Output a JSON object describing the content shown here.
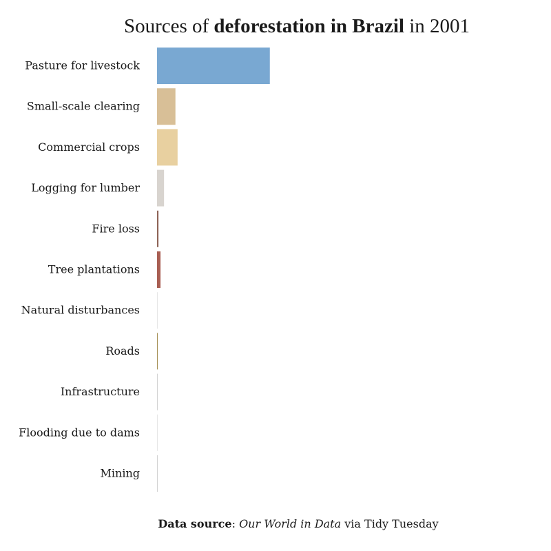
{
  "title": {
    "prefix": "Sources of ",
    "bold": "deforestation in Brazil",
    "suffix": " in 2001"
  },
  "caption": {
    "label": "Data source",
    "separator": ": ",
    "source": "Our World in Data",
    "suffix": " via Tidy Tuesday"
  },
  "chart_data": {
    "type": "bar",
    "orientation": "horizontal",
    "title": "Sources of deforestation in Brazil in 2001",
    "categories": [
      "Pasture for livestock",
      "Small-scale clearing",
      "Commercial crops",
      "Logging for lumber",
      "Fire loss",
      "Tree plantations",
      "Natural disturbances",
      "Roads",
      "Infrastructure",
      "Flooding due to dams",
      "Mining"
    ],
    "values": [
      2047000,
      334000,
      373000,
      127000,
      26000,
      63000,
      0,
      13000,
      2000,
      0,
      1000
    ],
    "colors": [
      "#79a8d2",
      "#d8bf97",
      "#e8d0a0",
      "#d8d4cf",
      "#8e6457",
      "#a85e52",
      "#e0e0e0",
      "#a69157",
      "#d3d3d3",
      "#e0e0e0",
      "#d3d3d3"
    ],
    "xlim": [
      0,
      7000000
    ],
    "xlabel": "",
    "ylabel": "",
    "grid": false,
    "legend": "none",
    "x_axis_visible": false
  }
}
